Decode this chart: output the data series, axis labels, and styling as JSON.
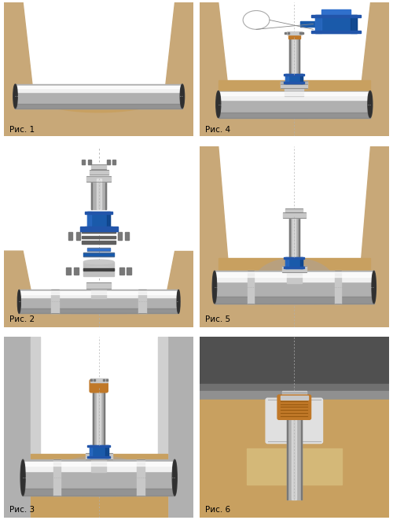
{
  "panel_labels": [
    "Рис. 1",
    "Рис. 2",
    "Рис. 3",
    "Рис. 4",
    "Рис. 5",
    "Рис. 6"
  ],
  "label_fontsize": 7.5,
  "colors": {
    "soil_brown": "#c8a878",
    "soil_dark": "#b8986a",
    "wall_gray": "#c0c0c0",
    "wall_inner": "#d8d8d8",
    "pipe_silver": "#d8d8d8",
    "pipe_mid": "#b0b0b0",
    "pipe_dark": "#787878",
    "pipe_edge": "#404040",
    "pipe_highlight": "#f0f0f0",
    "blue_valve": "#1a5aaa",
    "blue_light": "#3070cc",
    "blue_dark": "#0a3a7a",
    "blue_rim": "#2255aa",
    "fitting_silver": "#c8c8c8",
    "fitting_dark": "#909090",
    "dashed_line": "#b0b0b0",
    "sand_bed": "#c8a060",
    "gravel_color": "#b8a080",
    "bg_white": "#ffffff",
    "border_color": "#909090",
    "orange_cap": "#c07828",
    "road_asphalt": "#606060",
    "road_base": "#808080",
    "road_sub": "#a0a0a0",
    "concrete_surround": "#d0d0d0"
  }
}
